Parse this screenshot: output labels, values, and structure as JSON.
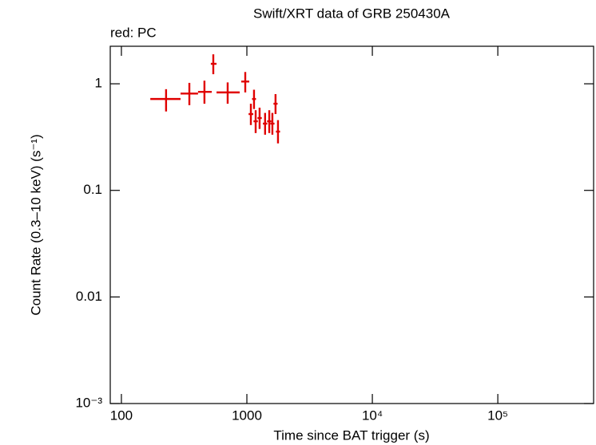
{
  "chart_data": {
    "type": "scatter",
    "title": "Swift/XRT data of GRB 250430A",
    "subtitle": "red: PC",
    "x_label": "Time since BAT trigger (s)",
    "y_label": "Count Rate (0.3–10 keV) (s⁻¹)",
    "log_x": true,
    "log_y": true,
    "xlim": [
      81.5,
      580000
    ],
    "ylim": [
      0.001,
      2.25
    ],
    "xticks": [
      100,
      1000,
      {
        "value": 10000,
        "label": "10⁴"
      },
      {
        "value": 100000,
        "label": "10⁵"
      }
    ],
    "yticks": [
      {
        "value": 0.001,
        "label": "10⁻³"
      },
      0.01,
      0.1,
      1
    ],
    "series": [
      {
        "name": "PC",
        "color": "#e00000",
        "x": [
          227,
          348,
          459,
          540,
          703,
          971,
          1076,
          1140,
          1175,
          1263,
          1397,
          1508,
          1597,
          1692,
          1770
        ],
        "x_err_minus": [
          57,
          52,
          51,
          24,
          130,
          69,
          44,
          40,
          45,
          48,
          55,
          58,
          60,
          62,
          65
        ],
        "x_err_plus": [
          69,
          60,
          66,
          33,
          174,
          74,
          48,
          42,
          48,
          52,
          58,
          60,
          63,
          65,
          68
        ],
        "values": [
          0.72,
          0.81,
          0.84,
          1.54,
          0.83,
          1.05,
          0.52,
          0.72,
          0.445,
          0.477,
          0.423,
          0.445,
          0.423,
          0.65,
          0.356
        ],
        "y_err_minus": [
          0.17,
          0.18,
          0.19,
          0.31,
          0.18,
          0.22,
          0.11,
          0.14,
          0.1,
          0.1,
          0.09,
          0.1,
          0.09,
          0.13,
          0.08
        ],
        "y_err_plus": [
          0.17,
          0.21,
          0.23,
          0.35,
          0.2,
          0.24,
          0.13,
          0.16,
          0.12,
          0.12,
          0.11,
          0.12,
          0.11,
          0.15,
          0.1
        ]
      }
    ]
  }
}
